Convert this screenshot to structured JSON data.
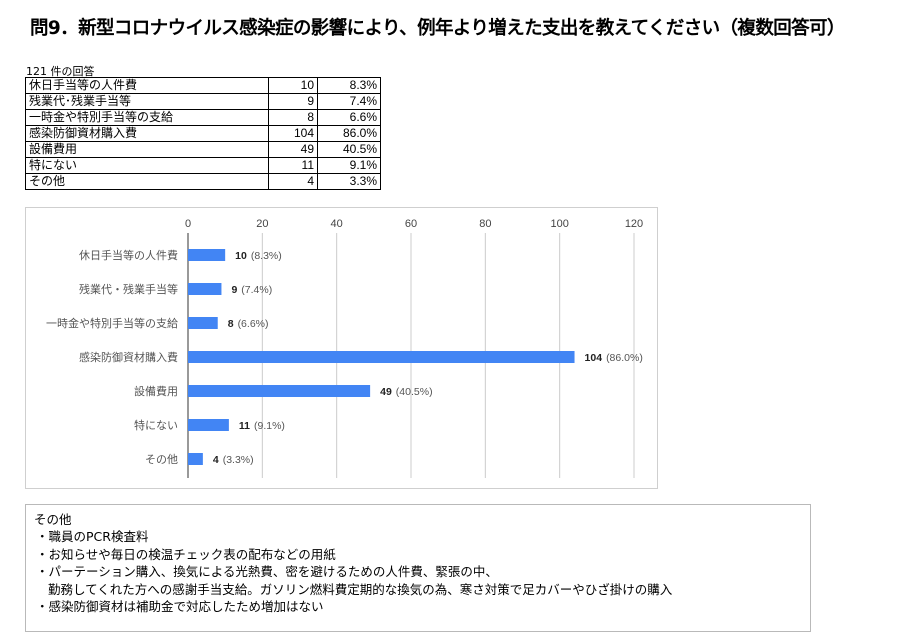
{
  "page_title": "問9．新型コロナウイルス感染症の影響により、例年より増えた支出を教えてください（複数回答可）",
  "response_count_label": "121 件の回答",
  "table_rows": [
    {
      "label": "休日手当等の人件費",
      "count": "10",
      "pct": "8.3%"
    },
    {
      "label": "残業代･残業手当等",
      "count": "9",
      "pct": "7.4%"
    },
    {
      "label": "一時金や特別手当等の支給",
      "count": "8",
      "pct": "6.6%"
    },
    {
      "label": "感染防御資材購入費",
      "count": "104",
      "pct": "86.0%"
    },
    {
      "label": "設備費用",
      "count": "49",
      "pct": "40.5%"
    },
    {
      "label": "特にない",
      "count": "11",
      "pct": "9.1%"
    },
    {
      "label": "その他",
      "count": "4",
      "pct": "3.3%"
    }
  ],
  "chart_data": {
    "type": "bar",
    "orientation": "horizontal",
    "categories": [
      "休日手当等の人件費",
      "残業代・残業手当等",
      "一時金や特別手当等の支給",
      "感染防御資材購入費",
      "設備費用",
      "特にない",
      "その他"
    ],
    "values": [
      10,
      9,
      8,
      104,
      49,
      11,
      4
    ],
    "value_labels": [
      "10",
      "9",
      "8",
      "104",
      "49",
      "11",
      "4"
    ],
    "pct_labels": [
      "(8.3%)",
      "(7.4%)",
      "(6.6%)",
      "(86.0%)",
      "(40.5%)",
      "(9.1%)",
      "(3.3%)"
    ],
    "x_ticks": [
      0,
      20,
      40,
      60,
      80,
      100,
      120
    ],
    "xlim": [
      0,
      120
    ],
    "x_axis_position": "top",
    "grid": true,
    "bar_color": "#4285f4"
  },
  "notes": {
    "heading": "その他",
    "items": [
      {
        "text": "・職員のPCR検査料"
      },
      {
        "text": "・お知らせや毎日の検温チェック表の配布などの用紙"
      },
      {
        "text": "・パーテーション購入、換気による光熱費、密を避けるための人件費、緊張の中、"
      },
      {
        "text": "勤務してくれた方への感謝手当支給。ガソリン燃料費定期的な換気の為、寒さ対策で足カバーやひざ掛けの購入",
        "continuation": true
      },
      {
        "text": "・感染防御資材は補助金で対応したため増加はない"
      }
    ]
  }
}
